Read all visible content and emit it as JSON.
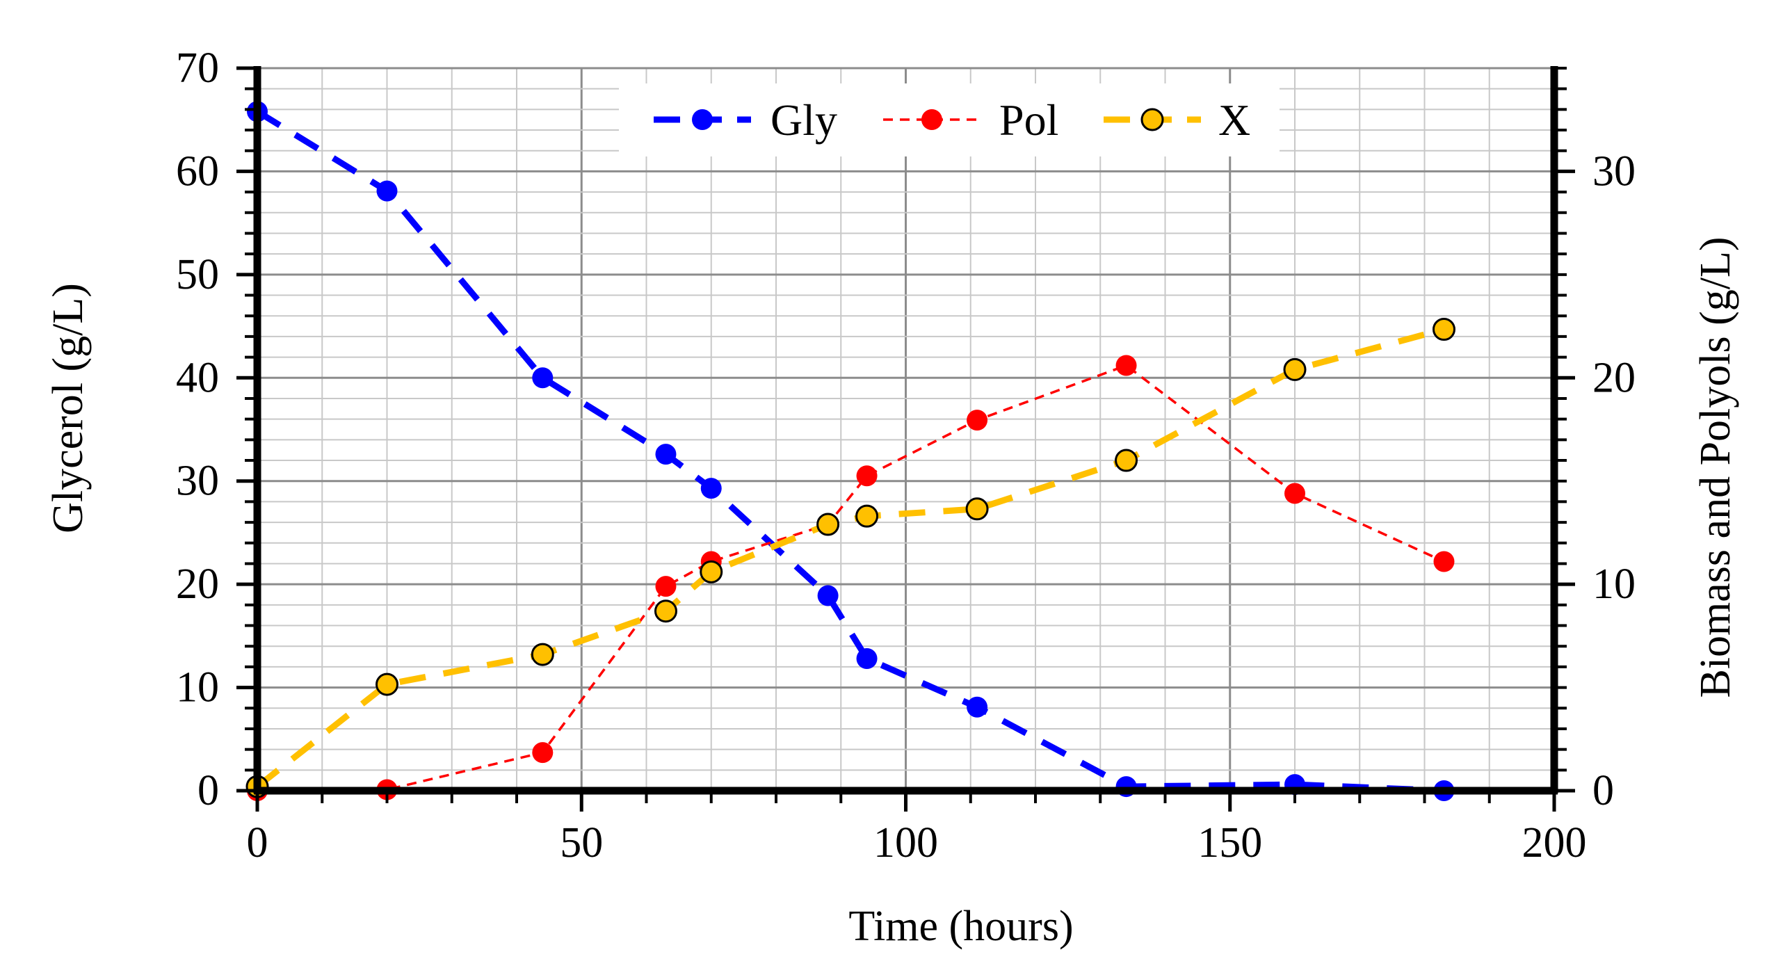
{
  "chart_data": {
    "type": "line",
    "x_axis": {
      "label": "Time (hours)",
      "range": [
        0,
        200
      ],
      "ticks": [
        0,
        50,
        100,
        150,
        200
      ]
    },
    "y_axis_left": {
      "label": "Glycerol (g/L)",
      "range": [
        0,
        70
      ],
      "ticks": [
        0,
        10,
        20,
        30,
        40,
        50,
        60,
        70
      ]
    },
    "y_axis_right": {
      "label": "Biomass and Polyols (g/L)",
      "range": [
        0,
        35
      ],
      "ticks": [
        0,
        10,
        20,
        30
      ]
    },
    "grid": true,
    "legend_position": "top",
    "series": [
      {
        "name": "Gly",
        "axis": "left",
        "color": "#0000ff",
        "line_style": "dashed-thick",
        "marker_fill": "#0000ff",
        "x": [
          0,
          20,
          44,
          63,
          70,
          88,
          94,
          111,
          134,
          160,
          183
        ],
        "y": [
          65.8,
          58.1,
          40.0,
          32.6,
          29.3,
          18.9,
          12.8,
          8.1,
          0.4,
          0.6,
          0.0
        ]
      },
      {
        "name": "Pol",
        "axis": "right",
        "color": "#ff0000",
        "line_style": "dashed-thin",
        "marker_fill": "#ff0000",
        "x": [
          0,
          20,
          44,
          63,
          70,
          88,
          94,
          111,
          134,
          160,
          183
        ],
        "y": [
          0.0,
          0.05,
          1.85,
          9.9,
          11.1,
          12.9,
          15.25,
          17.95,
          20.6,
          14.4,
          11.1
        ]
      },
      {
        "name": "X",
        "axis": "right",
        "color": "#ffc000",
        "line_style": "dashed-thick",
        "marker_fill": "#ffc000",
        "x": [
          0,
          20,
          44,
          63,
          70,
          88,
          94,
          111,
          134,
          160,
          183
        ],
        "y": [
          0.2,
          5.15,
          6.6,
          8.7,
          10.6,
          12.9,
          13.3,
          13.65,
          16.0,
          20.4,
          22.35
        ]
      }
    ]
  }
}
